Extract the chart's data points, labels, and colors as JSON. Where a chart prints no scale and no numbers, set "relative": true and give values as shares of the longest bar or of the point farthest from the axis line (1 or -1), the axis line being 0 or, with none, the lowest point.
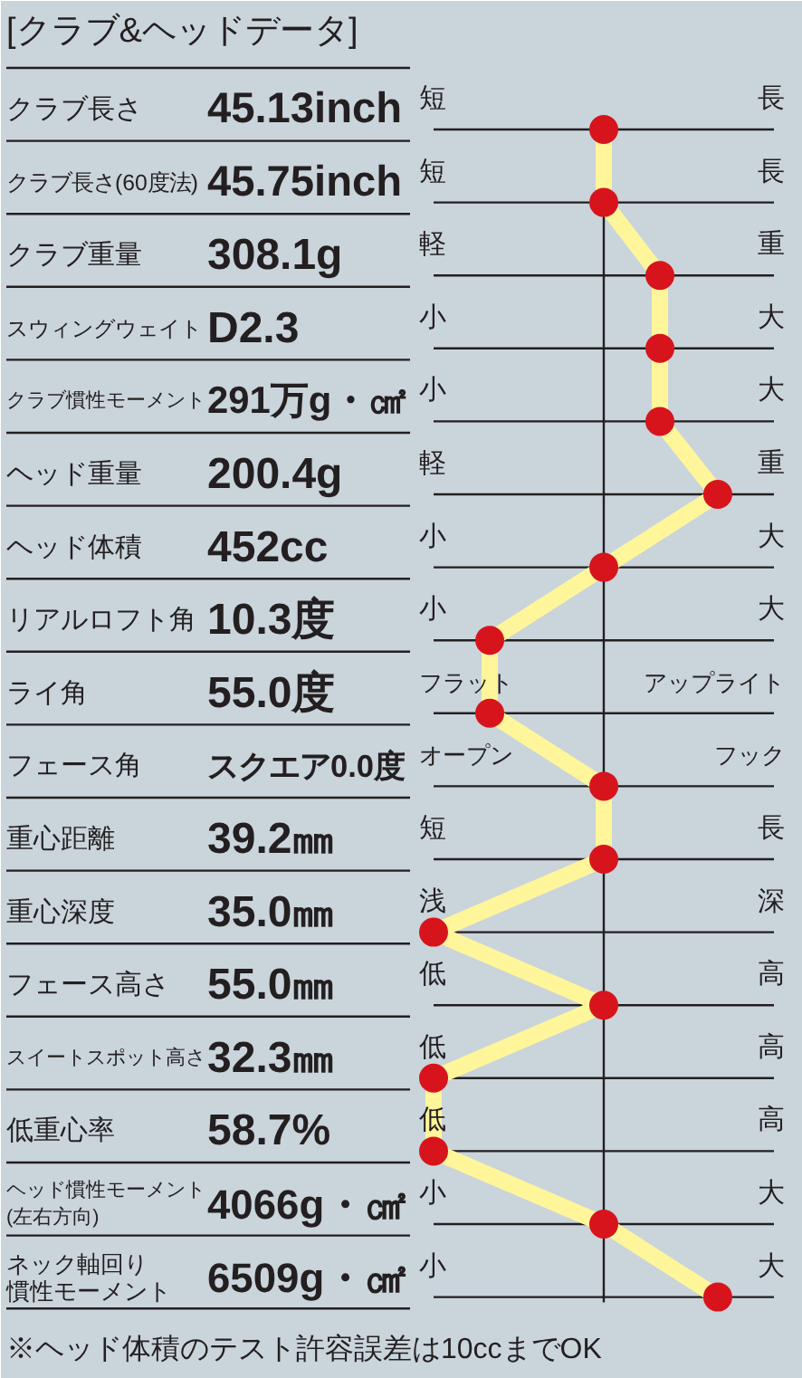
{
  "chart_data": {
    "type": "line",
    "orientation": "horizontal",
    "relative": true,
    "title": "[クラブ&ヘッドデータ]",
    "categories": [
      "クラブ長さ",
      "クラブ長さ(60度法)",
      "クラブ重量",
      "スウィングウェイト",
      "クラブ慣性モーメント",
      "ヘッド重量",
      "ヘッド体積",
      "リアルロフト角",
      "ライ角",
      "フェース角",
      "重心距離",
      "重心深度",
      "フェース高さ",
      "スイートスポット高さ",
      "低重心率",
      "ヘッド慣性モーメント(左右方向)",
      "ネック軸回り慣性モーメント"
    ],
    "values": [
      0,
      0,
      0.33,
      0.33,
      0.33,
      0.67,
      0,
      -0.67,
      -0.67,
      0,
      0,
      -1,
      0,
      -1,
      -1,
      0,
      0.67
    ],
    "color": "#fff59a",
    "colors": [
      "#d7141c",
      "#d7141c",
      "#d7141c",
      "#d7141c",
      "#d7141c",
      "#d7141c",
      "#d7141c",
      "#d7141c",
      "#d7141c",
      "#d7141c",
      "#d7141c",
      "#d7141c",
      "#d7141c",
      "#d7141c",
      "#d7141c",
      "#d7141c",
      "#d7141c"
    ],
    "marker": "circle",
    "line_style": "solid",
    "annotations": [
      "45.13inch",
      "短",
      "長",
      "45.75inch",
      "短",
      "長",
      "308.1g",
      "軽",
      "重",
      "D2.3",
      "小",
      "大",
      "291万g・㎠",
      "小",
      "大",
      "200.4g",
      "軽",
      "重",
      "452cc",
      "小",
      "大",
      "10.3度",
      "小",
      "大",
      "55.0度",
      "フラット",
      "アップライト",
      "スクエア0.0度",
      "オープン",
      "フック",
      "39.2㎜",
      "短",
      "長",
      "35.0㎜",
      "浅",
      "深",
      "55.0㎜",
      "低",
      "高",
      "32.3㎜",
      "低",
      "高",
      "58.7%",
      "低",
      "高",
      "4066g・㎠",
      "小",
      "大",
      "6509g・㎠",
      "小",
      "大",
      "※ヘッド体積のテスト許容誤差は10ccまでOK"
    ]
  }
}
